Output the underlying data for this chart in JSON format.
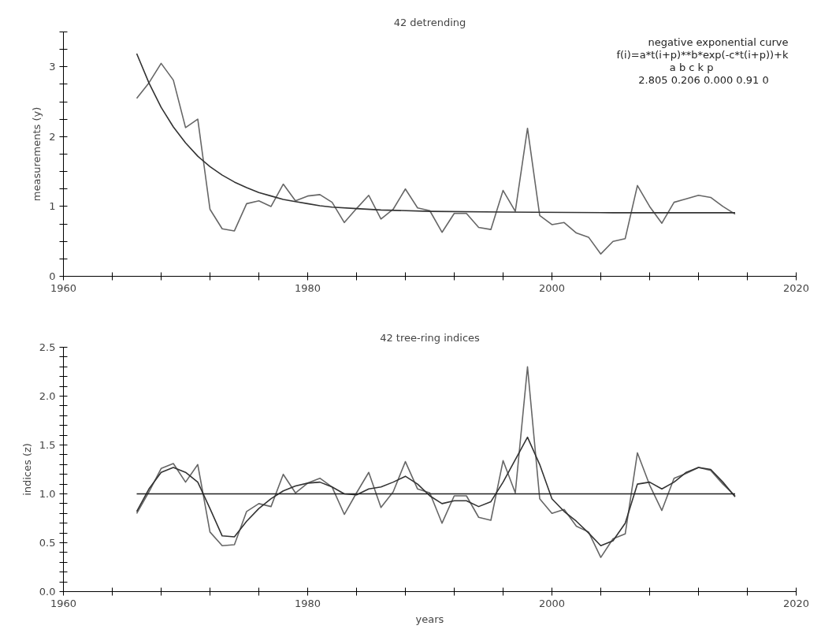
{
  "chart_data": [
    {
      "type": "line",
      "title": "42 detrending",
      "ylabel": "measurements (y)",
      "annotations": [
        "negative exponential curve",
        "f(i)=a*t(i+p)**b*exp(-c*t(i+p))+k",
        "a       b       c       k      p",
        "2.805  0.206  0.000   0.91   0"
      ],
      "x": [
        1966,
        1967,
        1968,
        1969,
        1970,
        1971,
        1972,
        1973,
        1974,
        1975,
        1976,
        1977,
        1978,
        1979,
        1980,
        1981,
        1982,
        1983,
        1984,
        1985,
        1986,
        1987,
        1988,
        1989,
        1990,
        1991,
        1992,
        1993,
        1994,
        1995,
        1996,
        1997,
        1998,
        1999,
        2000,
        2001,
        2002,
        2003,
        2004,
        2005,
        2006,
        2007,
        2008,
        2009,
        2010,
        2011,
        2012,
        2013,
        2014,
        2015
      ],
      "xlim": [
        1960,
        2020
      ],
      "xticks": [
        1960,
        {
          "value": 1964,
          "label": null
        },
        {
          "value": 1968,
          "label": null
        },
        {
          "value": 1972,
          "label": null
        },
        {
          "value": 1976,
          "label": null
        },
        1980,
        {
          "value": 1984,
          "label": null
        },
        {
          "value": 1988,
          "label": null
        },
        {
          "value": 1992,
          "label": null
        },
        {
          "value": 1996,
          "label": null
        },
        2000,
        {
          "value": 2004,
          "label": null
        },
        {
          "value": 2008,
          "label": null
        },
        {
          "value": 2012,
          "label": null
        },
        {
          "value": 2016,
          "label": null
        },
        2020
      ],
      "ylim": [
        0,
        3.5
      ],
      "yticks": [
        0,
        {
          "value": 0.25,
          "label": null
        },
        {
          "value": 0.5,
          "label": null
        },
        {
          "value": 0.75,
          "label": null
        },
        1,
        {
          "value": 1.25,
          "label": null
        },
        {
          "value": 1.5,
          "label": null
        },
        {
          "value": 1.75,
          "label": null
        },
        2,
        {
          "value": 2.25,
          "label": null
        },
        {
          "value": 2.5,
          "label": null
        },
        {
          "value": 2.75,
          "label": null
        },
        3,
        {
          "value": 3.25,
          "label": null
        },
        {
          "value": 3.5,
          "label": null
        }
      ],
      "grid": false,
      "series": [
        {
          "color": "#666666",
          "values": [
            2.55,
            2.77,
            3.05,
            2.81,
            2.13,
            2.25,
            0.96,
            0.68,
            0.65,
            1.04,
            1.08,
            1.0,
            1.32,
            1.08,
            1.15,
            1.17,
            1.06,
            0.77,
            0.97,
            1.16,
            0.82,
            0.96,
            1.25,
            0.98,
            0.94,
            0.63,
            0.9,
            0.9,
            0.7,
            0.67,
            1.23,
            0.93,
            2.12,
            0.87,
            0.74,
            0.77,
            0.62,
            0.56,
            0.32,
            0.5,
            0.54,
            1.3,
            1.0,
            0.76,
            1.06,
            1.11,
            1.16,
            1.13,
            1.0,
            0.89
          ]
        },
        {
          "color": "#333333",
          "x": [
            1966,
            1967,
            1968,
            1969,
            1970,
            1971,
            1972,
            1973,
            1974,
            1975,
            1976,
            1977,
            1978,
            1979,
            1980,
            1981,
            1982,
            1984,
            1986,
            1990,
            1996,
            2005,
            2015
          ],
          "values": [
            3.19,
            2.77,
            2.42,
            2.14,
            1.91,
            1.72,
            1.57,
            1.45,
            1.35,
            1.27,
            1.2,
            1.15,
            1.1,
            1.07,
            1.04,
            1.01,
            0.99,
            0.97,
            0.95,
            0.93,
            0.92,
            0.91,
            0.91
          ]
        }
      ]
    },
    {
      "type": "line",
      "title": "42 tree-ring indices",
      "xlabel": "years",
      "ylabel": "indices (z)",
      "x": [
        1966,
        1967,
        1968,
        1969,
        1970,
        1971,
        1972,
        1973,
        1974,
        1975,
        1976,
        1977,
        1978,
        1979,
        1980,
        1981,
        1982,
        1983,
        1984,
        1985,
        1986,
        1987,
        1988,
        1989,
        1990,
        1991,
        1992,
        1993,
        1994,
        1995,
        1996,
        1997,
        1998,
        1999,
        2000,
        2001,
        2002,
        2003,
        2004,
        2005,
        2006,
        2007,
        2008,
        2009,
        2010,
        2011,
        2012,
        2013,
        2014,
        2015
      ],
      "xlim": [
        1960,
        2020
      ],
      "xticks": [
        1960,
        {
          "value": 1964,
          "label": null
        },
        {
          "value": 1968,
          "label": null
        },
        {
          "value": 1972,
          "label": null
        },
        {
          "value": 1976,
          "label": null
        },
        1980,
        {
          "value": 1984,
          "label": null
        },
        {
          "value": 1988,
          "label": null
        },
        {
          "value": 1992,
          "label": null
        },
        {
          "value": 1996,
          "label": null
        },
        2000,
        {
          "value": 2004,
          "label": null
        },
        {
          "value": 2008,
          "label": null
        },
        {
          "value": 2012,
          "label": null
        },
        {
          "value": 2016,
          "label": null
        },
        2020
      ],
      "ylim": [
        0,
        2.5
      ],
      "yticks": [
        {
          "value": 0,
          "label": "0.0"
        },
        {
          "value": 0.1,
          "label": null
        },
        {
          "value": 0.2,
          "label": null
        },
        {
          "value": 0.3,
          "label": null
        },
        {
          "value": 0.4,
          "label": null
        },
        0.5,
        {
          "value": 0.6,
          "label": null
        },
        {
          "value": 0.7,
          "label": null
        },
        {
          "value": 0.8,
          "label": null
        },
        {
          "value": 0.9,
          "label": null
        },
        {
          "value": 1,
          "label": "1.0"
        },
        {
          "value": 1.1,
          "label": null
        },
        {
          "value": 1.2,
          "label": null
        },
        {
          "value": 1.3,
          "label": null
        },
        {
          "value": 1.4,
          "label": null
        },
        1.5,
        {
          "value": 1.6,
          "label": null
        },
        {
          "value": 1.7,
          "label": null
        },
        {
          "value": 1.8,
          "label": null
        },
        {
          "value": 1.9,
          "label": null
        },
        {
          "value": 2,
          "label": "2.0"
        },
        {
          "value": 2.1,
          "label": null
        },
        {
          "value": 2.2,
          "label": null
        },
        {
          "value": 2.3,
          "label": null
        },
        {
          "value": 2.4,
          "label": null
        },
        2.5
      ],
      "grid": false,
      "ref_lines": [
        {
          "axis": "y",
          "value": 1,
          "color": "#222222"
        }
      ],
      "series": [
        {
          "color": "#666666",
          "values": [
            0.8,
            1.02,
            1.26,
            1.31,
            1.12,
            1.3,
            0.61,
            0.47,
            0.48,
            0.82,
            0.9,
            0.87,
            1.2,
            1.01,
            1.11,
            1.16,
            1.07,
            0.79,
            1.01,
            1.22,
            0.86,
            1.02,
            1.33,
            1.05,
            1.01,
            0.7,
            0.98,
            0.98,
            0.76,
            0.73,
            1.34,
            1.01,
            2.3,
            0.95,
            0.8,
            0.84,
            0.67,
            0.61,
            0.35,
            0.54,
            0.59,
            1.42,
            1.09,
            0.83,
            1.16,
            1.21,
            1.27,
            1.24,
            1.1,
            0.98
          ]
        },
        {
          "color": "#333333",
          "values": [
            0.82,
            1.05,
            1.22,
            1.27,
            1.22,
            1.12,
            0.85,
            0.57,
            0.56,
            0.72,
            0.85,
            0.95,
            1.03,
            1.08,
            1.11,
            1.12,
            1.07,
            1.0,
            0.99,
            1.05,
            1.07,
            1.12,
            1.18,
            1.1,
            0.98,
            0.9,
            0.93,
            0.93,
            0.87,
            0.92,
            1.12,
            1.35,
            1.58,
            1.3,
            0.95,
            0.82,
            0.72,
            0.6,
            0.47,
            0.52,
            0.7,
            1.1,
            1.12,
            1.05,
            1.12,
            1.22,
            1.27,
            1.25,
            1.12,
            0.97
          ]
        }
      ]
    }
  ]
}
